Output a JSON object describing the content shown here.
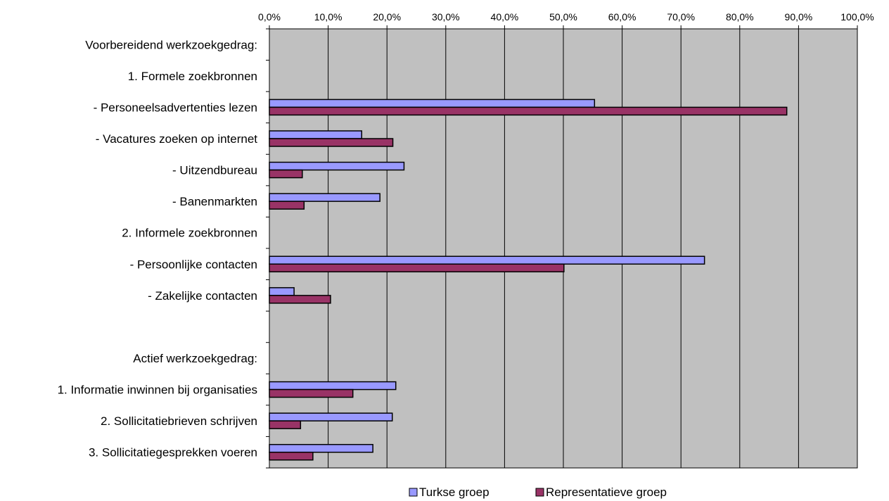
{
  "chart_data": {
    "type": "bar",
    "orientation": "horizontal",
    "categories": [
      "Voorbereidend werkzoekgedrag:",
      "1. Formele zoekbronnen",
      "- Personeelsadvertenties lezen",
      "- Vacatures zoeken op internet",
      "- Uitzendbureau",
      "- Banenmarkten",
      "2. Informele zoekbronnen",
      "- Persoonlijke contacten",
      "- Zakelijke contacten",
      "",
      "Actief werkzoekgedrag:",
      "1. Informatie inwinnen bij organisaties",
      "2. Sollicitatiebrieven schrijven",
      "3. Sollicitatiegesprekken voeren"
    ],
    "series": [
      {
        "name": "Turkse groep",
        "color": "#9999ff",
        "values": [
          null,
          null,
          55.3,
          15.7,
          22.9,
          18.8,
          null,
          74.0,
          4.2,
          null,
          null,
          21.5,
          20.9,
          17.6
        ]
      },
      {
        "name": "Representatieve groep",
        "color": "#993366",
        "values": [
          null,
          null,
          88.0,
          21.0,
          5.6,
          5.9,
          null,
          50.1,
          10.4,
          null,
          null,
          14.2,
          5.3,
          7.4
        ]
      }
    ],
    "xlim": [
      0,
      100
    ],
    "tick_labels": [
      "0,0%",
      "10,0%",
      "20,0%",
      "30,0%",
      "40,0%",
      "50,0%",
      "60,0%",
      "70,0%",
      "80,0%",
      "90,0%",
      "100,0%"
    ],
    "x_axis_position": "top",
    "grid": true,
    "plot_background": "#c0c0c0",
    "legend_position": "bottom",
    "title": "",
    "xlabel": "",
    "ylabel": ""
  }
}
